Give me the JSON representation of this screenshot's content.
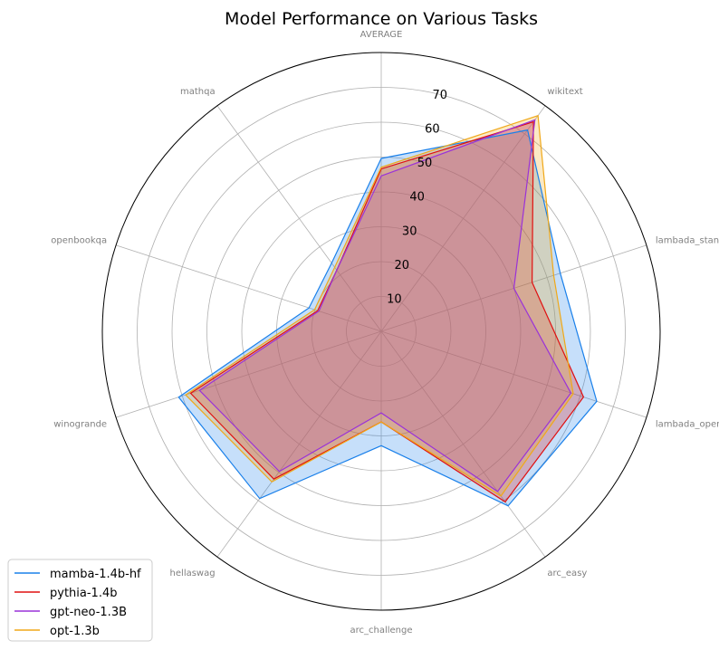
{
  "chart_data": {
    "type": "radar",
    "title": "Model Performance on Various Tasks",
    "axes": [
      "AVERAGE",
      "wikitext",
      "lambada_standard",
      "lambada_openai",
      "arc_easy",
      "arc_challenge",
      "hellaswag",
      "winogrande",
      "openbookqa",
      "mathqa"
    ],
    "rlim": [
      0,
      80
    ],
    "rticks": [
      10,
      20,
      30,
      40,
      50,
      60,
      70
    ],
    "rtick_labels": [
      "10",
      "20",
      "30",
      "40",
      "50",
      "60",
      "70"
    ],
    "grid": true,
    "legend_position": "lower-left",
    "series": [
      {
        "name": "mamba-1.4b-hf",
        "color": "#1a80ea",
        "values": [
          49.6,
          71.4,
          54.0,
          65.0,
          61.9,
          32.8,
          59.3,
          61.1,
          21.8,
          24.2
        ]
      },
      {
        "name": "pythia-1.4b",
        "color": "#e01010",
        "values": [
          46.6,
          74.3,
          45.5,
          61.0,
          60.5,
          26.0,
          52.4,
          57.5,
          19.2,
          21.7
        ]
      },
      {
        "name": "gpt-neo-1.3B",
        "color": "#9a32d8",
        "values": [
          44.6,
          75.0,
          40.0,
          57.2,
          56.8,
          23.4,
          49.7,
          54.8,
          18.8,
          21.7
        ]
      },
      {
        "name": "opt-1.3b",
        "color": "#f0a818",
        "values": [
          47.1,
          76.5,
          52.0,
          57.9,
          58.4,
          26.0,
          53.4,
          59.0,
          20.1,
          22.7
        ]
      }
    ]
  }
}
